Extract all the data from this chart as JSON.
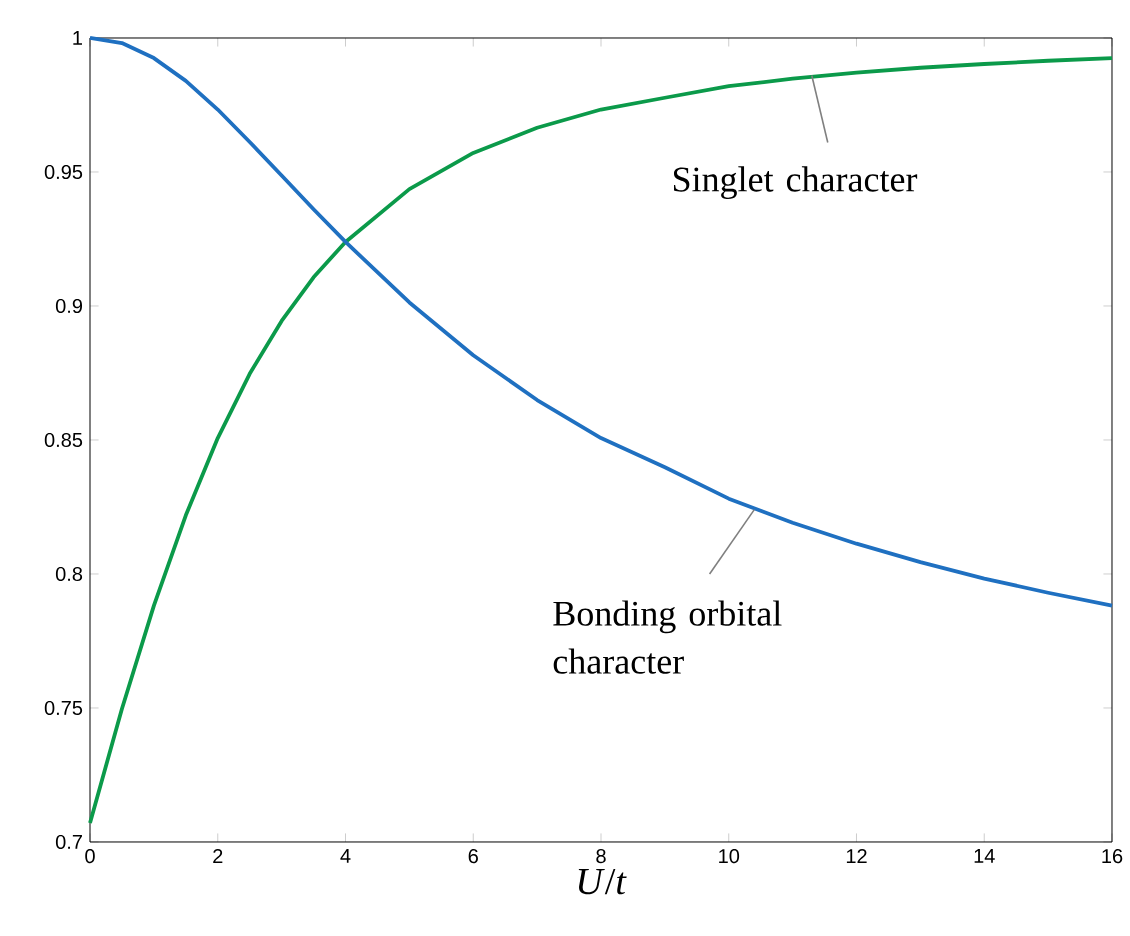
{
  "chart_data": {
    "type": "line",
    "xlabel": "*U*/*t*",
    "x": [
      0,
      0.5,
      1,
      1.5,
      2,
      2.5,
      3,
      3.5,
      4,
      5,
      6,
      7,
      8,
      9,
      10,
      11,
      12,
      13,
      14,
      15,
      16
    ],
    "series": [
      {
        "color": "#0b9a4a",
        "values": [
          0.7071,
          0.7497,
          0.7882,
          0.8219,
          0.8507,
          0.8747,
          0.8944,
          0.9107,
          0.9239,
          0.9436,
          0.9571,
          0.9665,
          0.9733,
          0.9777,
          0.982,
          0.9848,
          0.9871,
          0.9889,
          0.9903,
          0.9915,
          0.9925
        ]
      },
      {
        "color": "#1f70c1",
        "values": [
          1,
          0.9981,
          0.9925,
          0.984,
          0.9733,
          0.9612,
          0.9487,
          0.9361,
          0.9239,
          0.9013,
          0.8816,
          0.8649,
          0.8507,
          0.8398,
          0.8281,
          0.8191,
          0.8113,
          0.8044,
          0.7983,
          0.793,
          0.7882
        ]
      }
    ],
    "xlim": [
      0,
      16
    ],
    "ylim": [
      0.7,
      1
    ],
    "xticks": [
      0,
      2,
      4,
      6,
      8,
      10,
      12,
      14,
      16
    ],
    "yticks": [
      0.7,
      0.75,
      0.8,
      0.85,
      0.9,
      0.95,
      1
    ],
    "annotations": [
      {
        "text": "Singlet character",
        "x": 11.3,
        "y": 0.986
      },
      {
        "text": "Bonding orbital character",
        "x": 10.4,
        "y": 0.824
      }
    ],
    "grid": false,
    "marker": "none",
    "line_style": "solid"
  }
}
